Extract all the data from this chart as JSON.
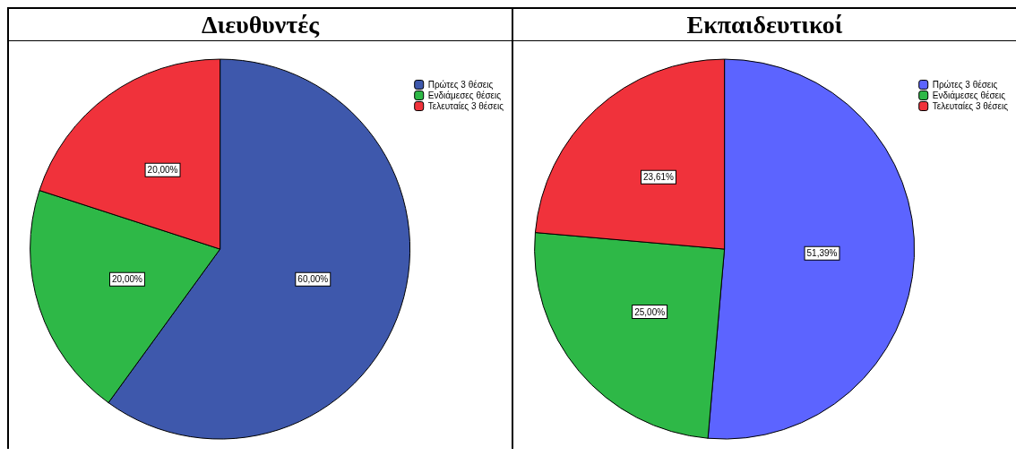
{
  "chart_data": [
    {
      "type": "pie",
      "title": "Διευθυντές",
      "categories": [
        "Πρώτες 3 θέσεις",
        "Ενδιάμεσες θέσεις",
        "Τελευταίες 3 θέσεις"
      ],
      "values": [
        60,
        20,
        20
      ],
      "value_labels": [
        "60,00%",
        "20,00%",
        "20,00%"
      ],
      "colors": [
        "#3e58ac",
        "#2eb847",
        "#f0323b"
      ],
      "legend": "top right"
    },
    {
      "type": "pie",
      "title": "Εκπαιδευτικοί",
      "categories": [
        "Πρώτες 3 θέσεις",
        "Ενδιάμεσες θέσεις",
        "Τελευταίες 3 θέσεις"
      ],
      "values": [
        51.39,
        25,
        23.61
      ],
      "value_labels": [
        "51,39%",
        "25,00%",
        "23,61%"
      ],
      "colors": [
        "#5c64ff",
        "#2eb847",
        "#f0323b"
      ],
      "legend": "top right"
    }
  ]
}
